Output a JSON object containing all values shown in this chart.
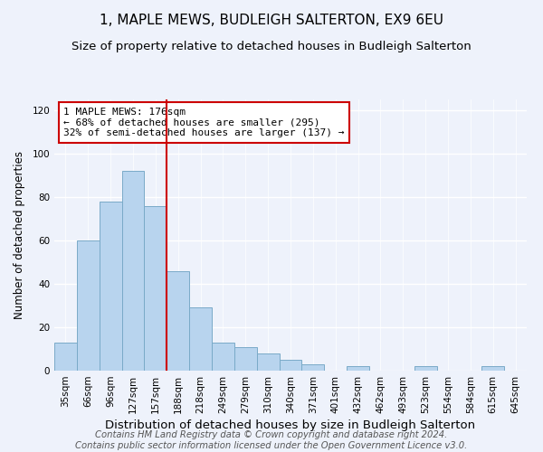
{
  "title": "1, MAPLE MEWS, BUDLEIGH SALTERTON, EX9 6EU",
  "subtitle": "Size of property relative to detached houses in Budleigh Salterton",
  "xlabel": "Distribution of detached houses by size in Budleigh Salterton",
  "ylabel": "Number of detached properties",
  "footer_line1": "Contains HM Land Registry data © Crown copyright and database right 2024.",
  "footer_line2": "Contains public sector information licensed under the Open Government Licence v3.0.",
  "bar_labels": [
    "35sqm",
    "66sqm",
    "96sqm",
    "127sqm",
    "157sqm",
    "188sqm",
    "218sqm",
    "249sqm",
    "279sqm",
    "310sqm",
    "340sqm",
    "371sqm",
    "401sqm",
    "432sqm",
    "462sqm",
    "493sqm",
    "523sqm",
    "554sqm",
    "584sqm",
    "615sqm",
    "645sqm"
  ],
  "bar_values": [
    13,
    60,
    78,
    92,
    76,
    46,
    29,
    13,
    11,
    8,
    5,
    3,
    0,
    2,
    0,
    0,
    2,
    0,
    0,
    2,
    0
  ],
  "bar_color": "#b8d4ee",
  "bar_edge_color": "#7aaac8",
  "vline_x_idx": 5,
  "vline_color": "#cc0000",
  "annotation_text": "1 MAPLE MEWS: 176sqm\n← 68% of detached houses are smaller (295)\n32% of semi-detached houses are larger (137) →",
  "annotation_box_color": "#ffffff",
  "annotation_box_edge": "#cc0000",
  "ylim": [
    0,
    125
  ],
  "yticks": [
    0,
    20,
    40,
    60,
    80,
    100,
    120
  ],
  "background_color": "#eef2fb",
  "title_fontsize": 11,
  "subtitle_fontsize": 9.5,
  "xlabel_fontsize": 9.5,
  "ylabel_fontsize": 8.5,
  "tick_fontsize": 7.5,
  "footer_fontsize": 7.2,
  "annotation_fontsize": 8.0
}
